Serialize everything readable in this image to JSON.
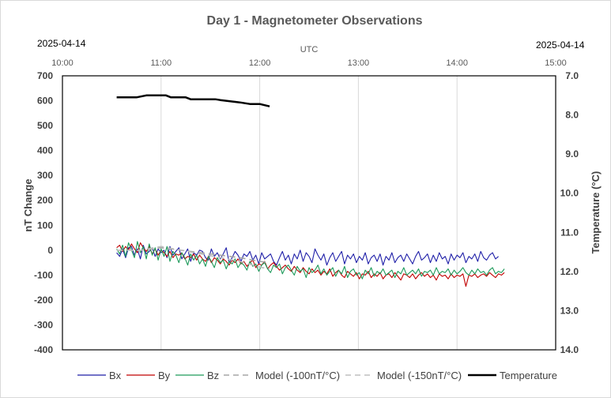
{
  "chart_data": {
    "type": "line",
    "title": "Day 1 - Magnetometer Observations",
    "date_left": "2025-04-14",
    "date_right": "2025-04-14",
    "x_axis": {
      "label": "UTC",
      "ticks": [
        "10:00",
        "11:00",
        "12:00",
        "13:00",
        "14:00",
        "15:00"
      ],
      "range_hours": [
        10,
        15
      ]
    },
    "y_left": {
      "label": "nT Change",
      "ylim": [
        -400,
        700
      ],
      "ticks": [
        "700",
        "600",
        "500",
        "400",
        "300",
        "200",
        "100",
        "0",
        "-100",
        "-200",
        "-300",
        "-400"
      ]
    },
    "y_right": {
      "label": "Temperature (°C)",
      "ylim": [
        7.0,
        14.0
      ],
      "inverted": true,
      "ticks": [
        "7.0",
        "8.0",
        "9.0",
        "10.0",
        "11.0",
        "12.0",
        "13.0",
        "14.0"
      ]
    },
    "grid": "vertical",
    "legend_position": "bottom",
    "series": [
      {
        "name": "Bx",
        "color": "#1f1fa8",
        "axis": "left",
        "style": "solid",
        "x_start": 10.55,
        "x_step": 0.03,
        "values": [
          -10,
          -25,
          5,
          -30,
          10,
          15,
          -20,
          5,
          -35,
          20,
          -15,
          -5,
          10,
          -25,
          5,
          -10,
          0,
          -30,
          15,
          -20,
          -5,
          10,
          -35,
          -15,
          5,
          -45,
          -10,
          -20,
          0,
          -5,
          -30,
          -40,
          5,
          -25,
          -10,
          -35,
          -15,
          10,
          -50,
          -30,
          -5,
          -20,
          -45,
          -15,
          -25,
          -5,
          -40,
          -20,
          -55,
          -10,
          -35,
          -25,
          -15,
          -45,
          -60,
          -30,
          -5,
          -40,
          -20,
          -55,
          -15,
          -35,
          0,
          -45,
          -10,
          -25,
          -50,
          5,
          -20,
          -40,
          -15,
          -60,
          -30,
          -10,
          -45,
          -25,
          -5,
          -55,
          -20,
          -35,
          -15,
          -50,
          -25,
          -40,
          -10,
          -55,
          -30,
          -20,
          -45,
          -15,
          -60,
          -25,
          -40,
          -10,
          -50,
          -30,
          -20,
          -45,
          -15,
          -35,
          -55,
          -25,
          -5,
          -40,
          -30,
          -15,
          -50,
          -20,
          -45,
          -10,
          -35,
          -25,
          -55,
          -15,
          -40,
          -20,
          -30,
          -10,
          -50,
          -25,
          -35,
          -15,
          -45,
          -5,
          -30,
          -40,
          -20,
          -10,
          -35,
          -25
        ]
      },
      {
        "name": "By",
        "color": "#c00000",
        "axis": "left",
        "style": "solid",
        "x_start": 10.55,
        "x_step": 0.03,
        "values": [
          10,
          20,
          -5,
          15,
          0,
          25,
          5,
          -10,
          30,
          10,
          -5,
          15,
          -15,
          5,
          -20,
          0,
          -10,
          -25,
          -5,
          -30,
          -15,
          -20,
          -10,
          -35,
          -25,
          -30,
          -15,
          -40,
          -20,
          -35,
          -45,
          -25,
          -50,
          -30,
          -40,
          -55,
          -35,
          -45,
          -60,
          -40,
          -50,
          -35,
          -55,
          -45,
          -65,
          -50,
          -40,
          -70,
          -55,
          -60,
          -45,
          -75,
          -60,
          -50,
          -65,
          -80,
          -70,
          -60,
          -75,
          -85,
          -65,
          -80,
          -90,
          -70,
          -85,
          -95,
          -75,
          -90,
          -80,
          -100,
          -85,
          -95,
          -75,
          -105,
          -90,
          -80,
          -100,
          -110,
          -85,
          -95,
          -105,
          -90,
          -115,
          -95,
          -100,
          -85,
          -110,
          -95,
          -105,
          -90,
          -115,
          -100,
          -95,
          -110,
          -90,
          -105,
          -120,
          -95,
          -100,
          -110,
          -95,
          -115,
          -100,
          -90,
          -105,
          -95,
          -110,
          -100,
          -120,
          -95,
          -105,
          -100,
          -115,
          -95,
          -110,
          -100,
          -105,
          -95,
          -145,
          -100,
          -105,
          -95,
          -110,
          -100,
          -95,
          -105,
          -90,
          -100,
          -110,
          -95,
          -100,
          -90
        ]
      },
      {
        "name": "Bz",
        "color": "#1d9a5a",
        "axis": "left",
        "style": "solid",
        "x_start": 10.55,
        "x_step": 0.03,
        "values": [
          5,
          -15,
          20,
          -25,
          30,
          0,
          -30,
          35,
          -10,
          15,
          -35,
          25,
          -20,
          10,
          -40,
          5,
          -25,
          15,
          -45,
          -5,
          -20,
          -50,
          -10,
          -30,
          -60,
          -15,
          -40,
          -20,
          -55,
          -35,
          -65,
          -25,
          -45,
          -70,
          -30,
          -50,
          -40,
          -75,
          -45,
          -55,
          -35,
          -70,
          -50,
          -60,
          -80,
          -45,
          -65,
          -55,
          -85,
          -60,
          -50,
          -75,
          -90,
          -60,
          -70,
          -55,
          -95,
          -70,
          -60,
          -80,
          -100,
          -65,
          -85,
          -75,
          -110,
          -70,
          -90,
          -80,
          -60,
          -95,
          -75,
          -100,
          -85,
          -70,
          -105,
          -80,
          -95,
          -65,
          -110,
          -85,
          -75,
          -100,
          -90,
          -115,
          -80,
          -95,
          -70,
          -105,
          -85,
          -95,
          -75,
          -100,
          -90,
          -80,
          -110,
          -85,
          -95,
          -70,
          -100,
          -90,
          -80,
          -95,
          -75,
          -105,
          -85,
          -90,
          -80,
          -100,
          -70,
          -95,
          -85,
          -90,
          -75,
          -100,
          -80,
          -95,
          -85,
          -70,
          -90,
          -100,
          -80,
          -95,
          -75,
          -90,
          -85,
          -100,
          -80,
          -70,
          -95,
          -85,
          -90,
          -75
        ]
      },
      {
        "name": "Model (-100nT/°C)",
        "color": "#a6a6a6",
        "axis": "left",
        "style": "dashed",
        "x": [
          10.55,
          10.8,
          11.0,
          11.2,
          11.5,
          11.8,
          12.0,
          12.1
        ],
        "values": [
          0,
          0,
          10,
          0,
          -15,
          -30,
          -45,
          -50
        ]
      },
      {
        "name": "Model (-150nT/°C)",
        "color": "#bfbfbf",
        "axis": "left",
        "style": "dashed",
        "x": [
          10.55,
          10.8,
          11.0,
          11.2,
          11.5,
          11.8,
          12.0,
          12.1
        ],
        "values": [
          0,
          0,
          15,
          0,
          -22,
          -45,
          -68,
          -75
        ]
      },
      {
        "name": "Temperature",
        "color": "#000000",
        "axis": "right",
        "style": "solid",
        "x": [
          10.55,
          10.65,
          10.75,
          10.85,
          10.9,
          11.0,
          11.05,
          11.1,
          11.15,
          11.25,
          11.3,
          11.35,
          11.4,
          11.55,
          11.6,
          11.7,
          11.8,
          11.9,
          12.0,
          12.05,
          12.1
        ],
        "values": [
          7.55,
          7.55,
          7.55,
          7.5,
          7.5,
          7.5,
          7.5,
          7.55,
          7.55,
          7.55,
          7.6,
          7.6,
          7.6,
          7.6,
          7.62,
          7.65,
          7.68,
          7.72,
          7.72,
          7.75,
          7.78
        ]
      }
    ]
  }
}
